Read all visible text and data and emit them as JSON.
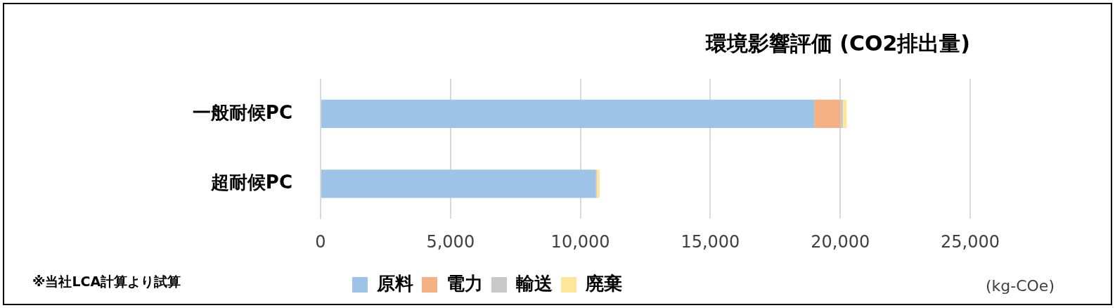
{
  "chart_data": {
    "type": "bar",
    "orientation": "horizontal",
    "stacked": true,
    "title": "環境影響評価 (CO2排出量)",
    "categories": [
      "一般耐候PC",
      "超耐候PC"
    ],
    "series": [
      {
        "name": "原料",
        "color": "#9dc3e6",
        "values": [
          19000,
          10600
        ]
      },
      {
        "name": "電力",
        "color": "#f4b183",
        "values": [
          1000,
          20
        ]
      },
      {
        "name": "輸送",
        "color": "#c9c9c9",
        "values": [
          100,
          20
        ]
      },
      {
        "name": "廃棄",
        "color": "#ffe699",
        "values": [
          150,
          100
        ]
      }
    ],
    "xlim": [
      0,
      25000
    ],
    "xticks": [
      {
        "value": 0,
        "label": "0"
      },
      {
        "value": 5000,
        "label": "5,000"
      },
      {
        "value": 10000,
        "label": "10,000"
      },
      {
        "value": 15000,
        "label": "15,000"
      },
      {
        "value": 20000,
        "label": "20,000"
      },
      {
        "value": 25000,
        "label": "25,000"
      }
    ],
    "grid": "x",
    "legend": "bottom",
    "annotations": [
      "※当社LCA計算より試算",
      "(kg-COe)"
    ]
  }
}
